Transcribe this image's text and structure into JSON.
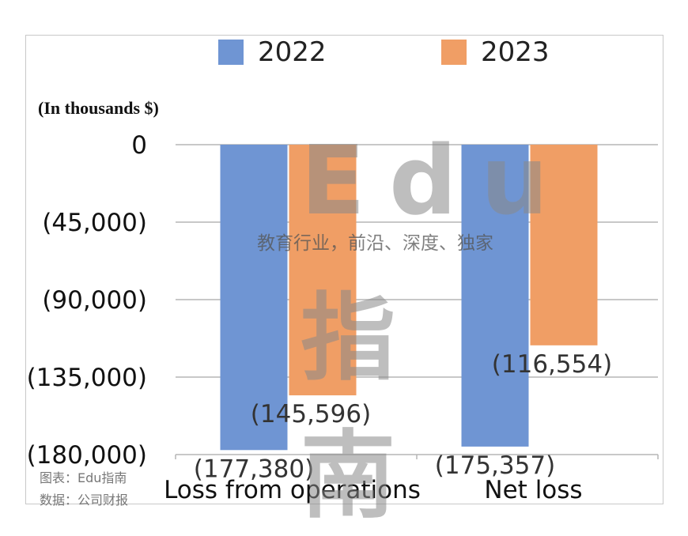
{
  "legend": [
    {
      "label": "2022",
      "color": "#6f95d3"
    },
    {
      "label": "2023",
      "color": "#f09e65"
    }
  ],
  "unit_note": "(In thousands $)",
  "watermark": {
    "title": "Edu",
    "slogan": "教育行业，前沿、深度、独家",
    "title2": "指南"
  },
  "source": {
    "line1": "图表：Edu指南",
    "line2": "数据：公司财报"
  },
  "chart_data": {
    "type": "bar",
    "categories": [
      "Loss from operations",
      "Net loss"
    ],
    "series": [
      {
        "name": "2022",
        "values": [
          -177380,
          -175357
        ],
        "labels": [
          "(177,380)",
          "(175,357)"
        ],
        "color": "#6f95d3"
      },
      {
        "name": "2023",
        "values": [
          -145596,
          -116554
        ],
        "labels": [
          "(145,596)",
          "(116,554)"
        ],
        "color": "#f09e65"
      }
    ],
    "yticks": [
      0,
      -45000,
      -90000,
      -135000,
      -180000
    ],
    "ytick_labels": [
      "0",
      "(45,000)",
      "(90,000)",
      "(135,000)",
      "(180,000)"
    ],
    "ylim": [
      -180000,
      0
    ],
    "grid": true,
    "legend_position": "top",
    "ylabel": "(In thousands $)"
  }
}
